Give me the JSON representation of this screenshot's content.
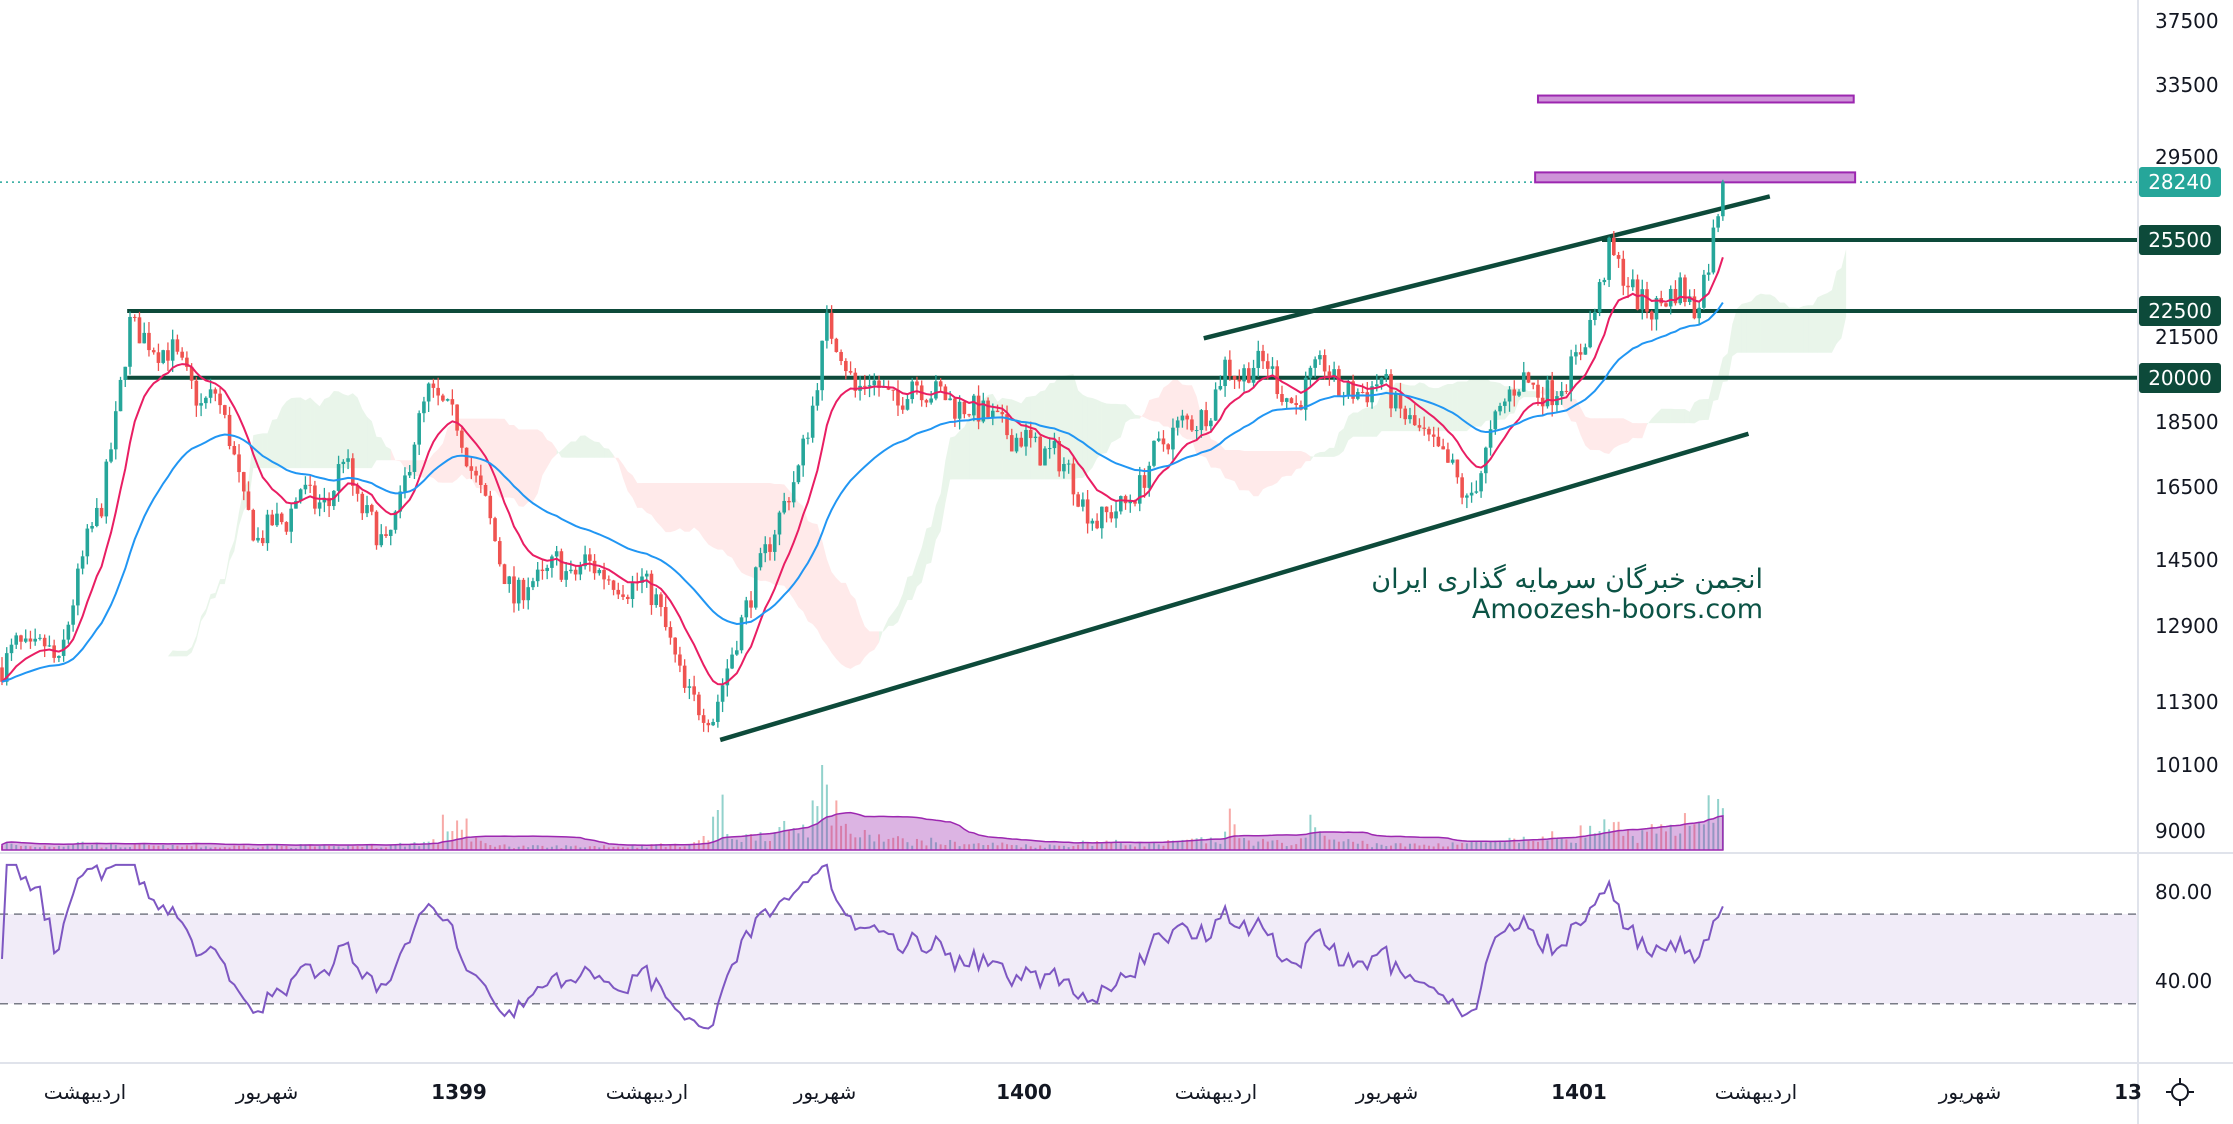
{
  "chart_data": {
    "type": "candlestick",
    "y_scale": "log",
    "ylim": [
      8600,
      39000
    ],
    "price_ticks": [
      "37500",
      "33500",
      "29500",
      "21500",
      "18500",
      "16500",
      "14500",
      "12900",
      "11300",
      "10100",
      "9000"
    ],
    "time_labels": [
      "اردیبهشت",
      "شهریور",
      "1399",
      "اردیبهشت",
      "شهریور",
      "1400",
      "اردیبهشت",
      "شهریور",
      "1401",
      "اردیبهشت",
      "شهریور",
      "13"
    ],
    "closes": [
      12000,
      12500,
      12300,
      12500,
      12000,
      13500,
      15000,
      16000,
      18500,
      22000,
      21500,
      21000,
      21000,
      20000,
      19000,
      19500,
      18000,
      16000,
      15000,
      15500,
      15500,
      16500,
      16000,
      16000,
      17500,
      16000,
      15500,
      14800,
      16000,
      18000,
      19500,
      19000,
      18500,
      17000,
      16000,
      14500,
      13500,
      14000,
      14000,
      14500,
      14000,
      14500,
      14200,
      14000,
      13800,
      14000,
      13500,
      12500,
      11500,
      11200,
      11000,
      12000,
      13000,
      14000,
      15000,
      16000,
      17000,
      19000,
      22000,
      21000,
      19500,
      20000,
      19500,
      19000,
      20000,
      19500,
      19500,
      19000,
      19000,
      18800,
      18500,
      18000,
      18000,
      17500,
      17500,
      17000,
      16000,
      15500,
      15800,
      16000,
      16500,
      17500,
      18000,
      18500,
      18500,
      19000,
      20500,
      20000,
      20500,
      20500,
      19500,
      19000,
      20000,
      20500,
      19500,
      19500,
      19500,
      20000,
      19000,
      18500,
      18000,
      17500,
      17000,
      16000,
      17000,
      18500,
      19500,
      20000,
      19500,
      19500,
      20000,
      21000,
      22500,
      25000,
      24000,
      23000,
      22500,
      23000,
      23500,
      22500,
      24500,
      28240
    ],
    "volume_relative": [
      8,
      6,
      5,
      6,
      7,
      10,
      8,
      6,
      5,
      6,
      6,
      5,
      5,
      6,
      5,
      4,
      5,
      6,
      5,
      5,
      5,
      6,
      5,
      4,
      5,
      6,
      5,
      6,
      8,
      10,
      12,
      35,
      40,
      12,
      8,
      6,
      5,
      5,
      4,
      5,
      5,
      5,
      6,
      5,
      5,
      6,
      8,
      6,
      10,
      15,
      55,
      20,
      18,
      25,
      22,
      30,
      35,
      100,
      70,
      30,
      20,
      18,
      15,
      14,
      12,
      12,
      10,
      10,
      8,
      8,
      8,
      7,
      6,
      6,
      6,
      8,
      10,
      12,
      10,
      9,
      8,
      8,
      10,
      12,
      14,
      12,
      40,
      14,
      12,
      10,
      10,
      12,
      50,
      15,
      12,
      10,
      8,
      8,
      7,
      7,
      7,
      8,
      10,
      10,
      12,
      10,
      12,
      14,
      16,
      18,
      20,
      25,
      30,
      28,
      22,
      20,
      25,
      30,
      45,
      60,
      55,
      50
    ],
    "last_price": {
      "value": "28240",
      "color": "#26a69a"
    },
    "levels": [
      {
        "value": "25500",
        "start_bar": 112.5,
        "color": "#0d4a3a"
      },
      {
        "value": "22500",
        "start_bar": 8.8,
        "color": "#0d4a3a"
      },
      {
        "value": "20000",
        "start_bar": 8.8,
        "color": "#0d4a3a"
      }
    ],
    "trendlines": [
      {
        "from": {
          "bar": 84.5,
          "price": 21440
        },
        "to": {
          "bar": 124.3,
          "price": 27540
        }
      },
      {
        "from": {
          "bar": 50.5,
          "price": 10560
        },
        "to": {
          "bar": 122.8,
          "price": 18120
        }
      }
    ],
    "zones": [
      {
        "from_bar": 108,
        "to_bar": 130.2,
        "low": 32500,
        "high": 32900
      },
      {
        "from_bar": 107.8,
        "to_bar": 130.3,
        "low": 28230,
        "high": 28730
      }
    ],
    "rsi": {
      "ticks": [
        "80.00",
        "40.00"
      ],
      "upper_band": 70,
      "lower_band": 30
    },
    "colors": {
      "up": "#26a69a",
      "down": "#ef5350",
      "ma_fast": "#e91e63",
      "ma_slow": "#2196f3",
      "rsi": "#7e57c2",
      "levels": "#0d4a3a",
      "zone": "#ce93d8"
    }
  },
  "watermark": {
    "line1": "انجمن خبرگان سرمایه گذاری ایران",
    "line2": "Amoozesh-boors.com"
  }
}
